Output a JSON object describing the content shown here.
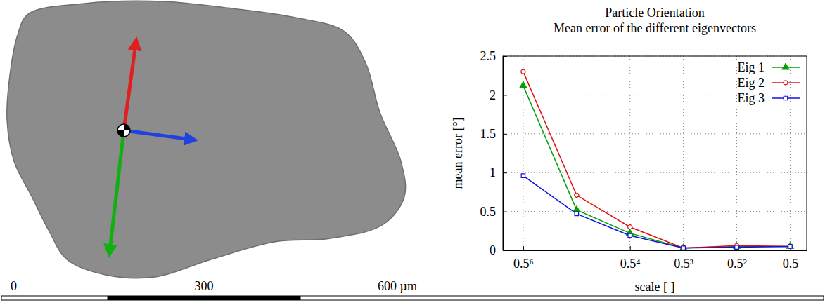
{
  "chart_data": {
    "type": "line",
    "title": "Particle Orientation",
    "subtitle": "Mean error of the different eigenvectors",
    "x_label": "scale [ ]",
    "y_label": "mean error [°]",
    "x": [
      0.015625,
      0.03125,
      0.0625,
      0.125,
      0.25,
      0.5
    ],
    "series": [
      {
        "name": "Eig 1",
        "color": "#00a000",
        "marker": "triangle",
        "values": [
          2.12,
          0.52,
          0.22,
          0.03,
          0.05,
          0.05
        ]
      },
      {
        "name": "Eig 2",
        "color": "#e01010",
        "marker": "circle",
        "values": [
          2.3,
          0.71,
          0.3,
          0.03,
          0.06,
          0.05
        ]
      },
      {
        "name": "Eig 3",
        "color": "#1010e0",
        "marker": "square",
        "values": [
          0.96,
          0.47,
          0.19,
          0.03,
          0.04,
          0.05
        ]
      }
    ],
    "log": "x",
    "xlim": [
      0.012,
      0.62
    ],
    "xticks": [
      {
        "value": 0.015625,
        "label": "0.5⁶"
      },
      {
        "value": 0.0625,
        "label": "0.5⁴"
      },
      {
        "value": 0.125,
        "label": "0.5³"
      },
      {
        "value": 0.25,
        "label": "0.5²"
      },
      {
        "value": 0.5,
        "label": "0.5"
      }
    ],
    "ylim": [
      0,
      2.5
    ],
    "yticks": [
      0,
      0.5,
      1,
      1.5,
      2,
      2.5
    ],
    "grid": true,
    "legend": "top-right"
  },
  "scale_bar": {
    "ticks": [
      {
        "value": 0,
        "label": "0"
      },
      {
        "value": 300,
        "label": "300"
      },
      {
        "value": 600,
        "label": "600 µm"
      }
    ]
  }
}
